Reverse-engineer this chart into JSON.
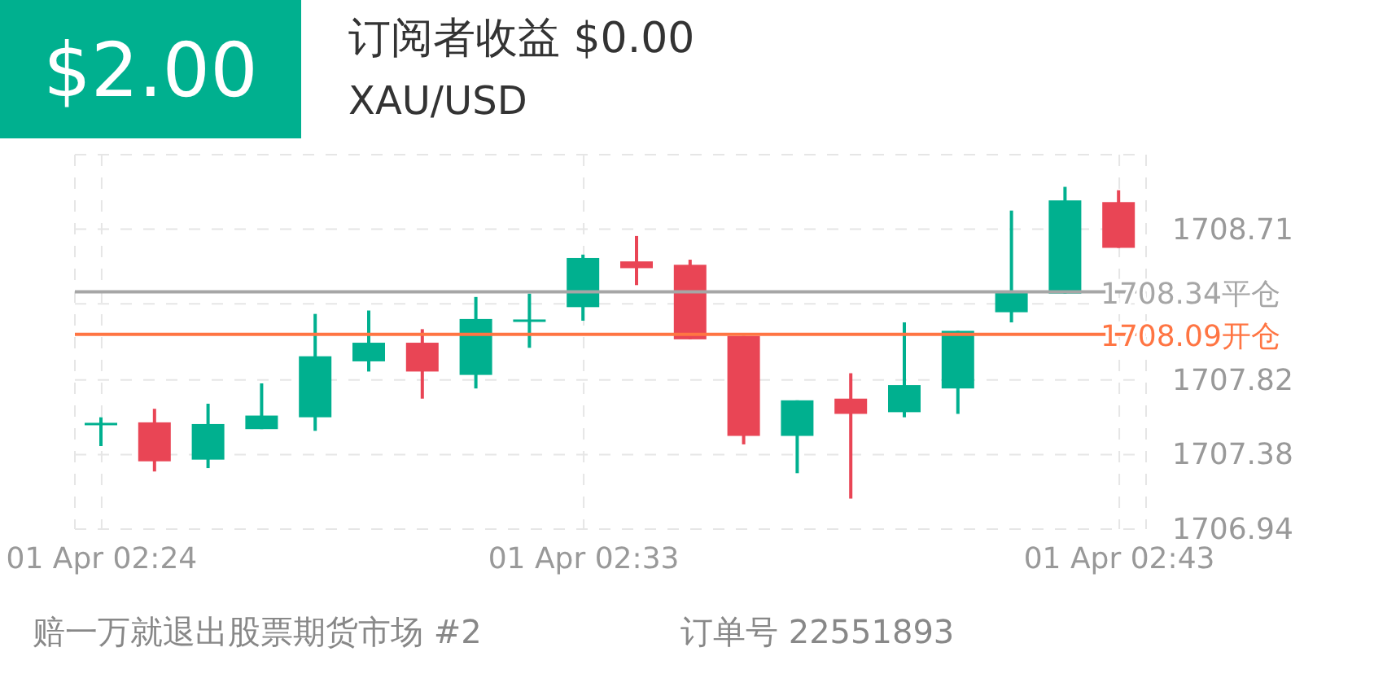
{
  "chart_data": {
    "type": "candlestick",
    "title": "订阅者收益 $0.00",
    "subtitle": "XAU/USD",
    "annotations": [
      "$2.00",
      "赔一万就退出股票期货市场 #2",
      "订单号 22551893"
    ],
    "categories": [
      "01 Apr 02:24",
      null,
      null,
      null,
      null,
      null,
      null,
      null,
      null,
      "01 Apr 02:33",
      null,
      null,
      null,
      null,
      null,
      null,
      null,
      null,
      null,
      "01 Apr 02:43"
    ],
    "ohlc": [
      [
        1707.56,
        1707.6,
        1707.43,
        1707.56
      ],
      [
        1707.57,
        1707.65,
        1707.28,
        1707.34
      ],
      [
        1707.35,
        1707.68,
        1707.3,
        1707.56
      ],
      [
        1707.53,
        1707.8,
        1707.53,
        1707.61
      ],
      [
        1707.6,
        1708.21,
        1707.52,
        1707.96
      ],
      [
        1707.93,
        1708.23,
        1707.87,
        1708.04
      ],
      [
        1708.04,
        1708.12,
        1707.71,
        1707.87
      ],
      [
        1707.85,
        1708.31,
        1707.77,
        1708.18
      ],
      [
        1708.17,
        1708.33,
        1708.01,
        1708.17
      ],
      [
        1708.25,
        1708.56,
        1708.17,
        1708.54
      ],
      [
        1708.52,
        1708.67,
        1708.38,
        1708.48
      ],
      [
        1708.5,
        1708.53,
        1708.06,
        1708.06
      ],
      [
        1708.08,
        1708.08,
        1707.44,
        1707.49
      ],
      [
        1707.49,
        1707.7,
        1707.27,
        1707.7
      ],
      [
        1707.71,
        1707.86,
        1707.12,
        1707.62
      ],
      [
        1707.63,
        1708.16,
        1707.6,
        1707.79
      ],
      [
        1707.77,
        1708.11,
        1707.62,
        1708.11
      ],
      [
        1708.22,
        1708.82,
        1708.16,
        1708.34
      ],
      [
        1708.33,
        1708.96,
        1708.33,
        1708.88
      ],
      [
        1708.87,
        1708.94,
        1708.6,
        1708.6
      ]
    ],
    "colors": [
      "#00b08f",
      "#e94555",
      "#00b08f",
      "#00b08f",
      "#00b08f",
      "#00b08f",
      "#e94555",
      "#00b08f",
      "#00b08f",
      "#00b08f",
      "#e94555",
      "#e94555",
      "#e94555",
      "#00b08f",
      "#e94555",
      "#00b08f",
      "#00b08f",
      "#00b08f",
      "#00b08f",
      "#e94555"
    ],
    "ylim": [
      1706.94,
      1709.15
    ],
    "yticks": [
      1706.94,
      1707.38,
      1707.82,
      {
        "value": 1708.27,
        "label": null
      },
      1708.71,
      {
        "value": 1709.15,
        "label": null
      }
    ],
    "ref_lines": [
      {
        "axis": "y",
        "value": 1708.34,
        "label": "1708.34平仓",
        "color": "#a6a6a6"
      },
      {
        "axis": "y",
        "value": 1708.09,
        "label": "1708.09开仓",
        "color": "#ff7543"
      }
    ],
    "grid": true
  }
}
